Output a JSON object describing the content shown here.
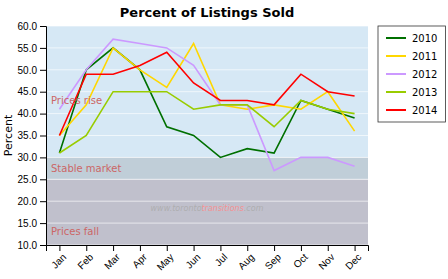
{
  "chart_data": {
    "type": "line",
    "title": "Percent of Listings Sold",
    "y_label": "Percent",
    "categories": [
      "Jan",
      "Feb",
      "Mar",
      "Apr",
      "May",
      "Jun",
      "Jul",
      "Aug",
      "Sep",
      "Oct",
      "Nov",
      "Dec"
    ],
    "series": [
      {
        "name": "2010",
        "color": "#007000",
        "values": [
          31,
          50,
          55,
          50,
          37,
          35,
          30,
          32,
          31,
          43,
          41,
          39
        ]
      },
      {
        "name": "2011",
        "color": "#FFD700",
        "values": [
          35,
          42,
          55,
          50,
          46,
          56,
          42,
          41,
          42,
          41,
          45,
          36
        ]
      },
      {
        "name": "2012",
        "color": "#CC99FF",
        "values": [
          41,
          50,
          57,
          56,
          55,
          51,
          42,
          42,
          27,
          30,
          30,
          28
        ]
      },
      {
        "name": "2013",
        "color": "#99CC00",
        "values": [
          31,
          35,
          45,
          45,
          45,
          41,
          42,
          42,
          37,
          43,
          41,
          40
        ]
      },
      {
        "name": "2014",
        "color": "#FF0000",
        "values": [
          35,
          49,
          49,
          51,
          54,
          47,
          43,
          43,
          42,
          49,
          45,
          44
        ]
      }
    ],
    "ylim": [
      10.0,
      60.0
    ],
    "yticks": [
      {
        "value": 10,
        "label": "10.0"
      },
      {
        "value": 15,
        "label": "15.0"
      },
      {
        "value": 20,
        "label": "20.0"
      },
      {
        "value": 25,
        "label": "25.0"
      },
      {
        "value": 30,
        "label": "30.0"
      },
      {
        "value": 35,
        "label": "35.0"
      },
      {
        "value": 40,
        "label": "40.0"
      },
      {
        "value": 45,
        "label": "45.0"
      },
      {
        "value": 50,
        "label": "50.0"
      },
      {
        "value": 55,
        "label": "55.0"
      },
      {
        "value": 60,
        "label": "60.0"
      }
    ],
    "bands": [
      {
        "from": 30.0,
        "to": 60.0,
        "color": "#D6E8F5"
      },
      {
        "from": 25.0,
        "to": 30.0,
        "color": "#C0CED8"
      },
      {
        "from": 10.0,
        "to": 25.0,
        "color": "#C0C0CC"
      }
    ],
    "annotations": [
      {
        "text": "www.toronto",
        "y": 18.5,
        "color": "#AAAAAA"
      },
      {
        "text": "transitions",
        "y": 18.5,
        "color": "#FF8888"
      },
      {
        "text": ".com",
        "y": 18.5,
        "color": "#AAAAAA"
      },
      {
        "text": "Prices rise",
        "y": 43,
        "color": "#CC6666"
      },
      {
        "text": "Stable market",
        "y": 27.5,
        "color": "#CC6666"
      },
      {
        "text": "Prices fall",
        "y": 13,
        "color": "#CC6666"
      }
    ],
    "grid": true,
    "legend": "right"
  }
}
